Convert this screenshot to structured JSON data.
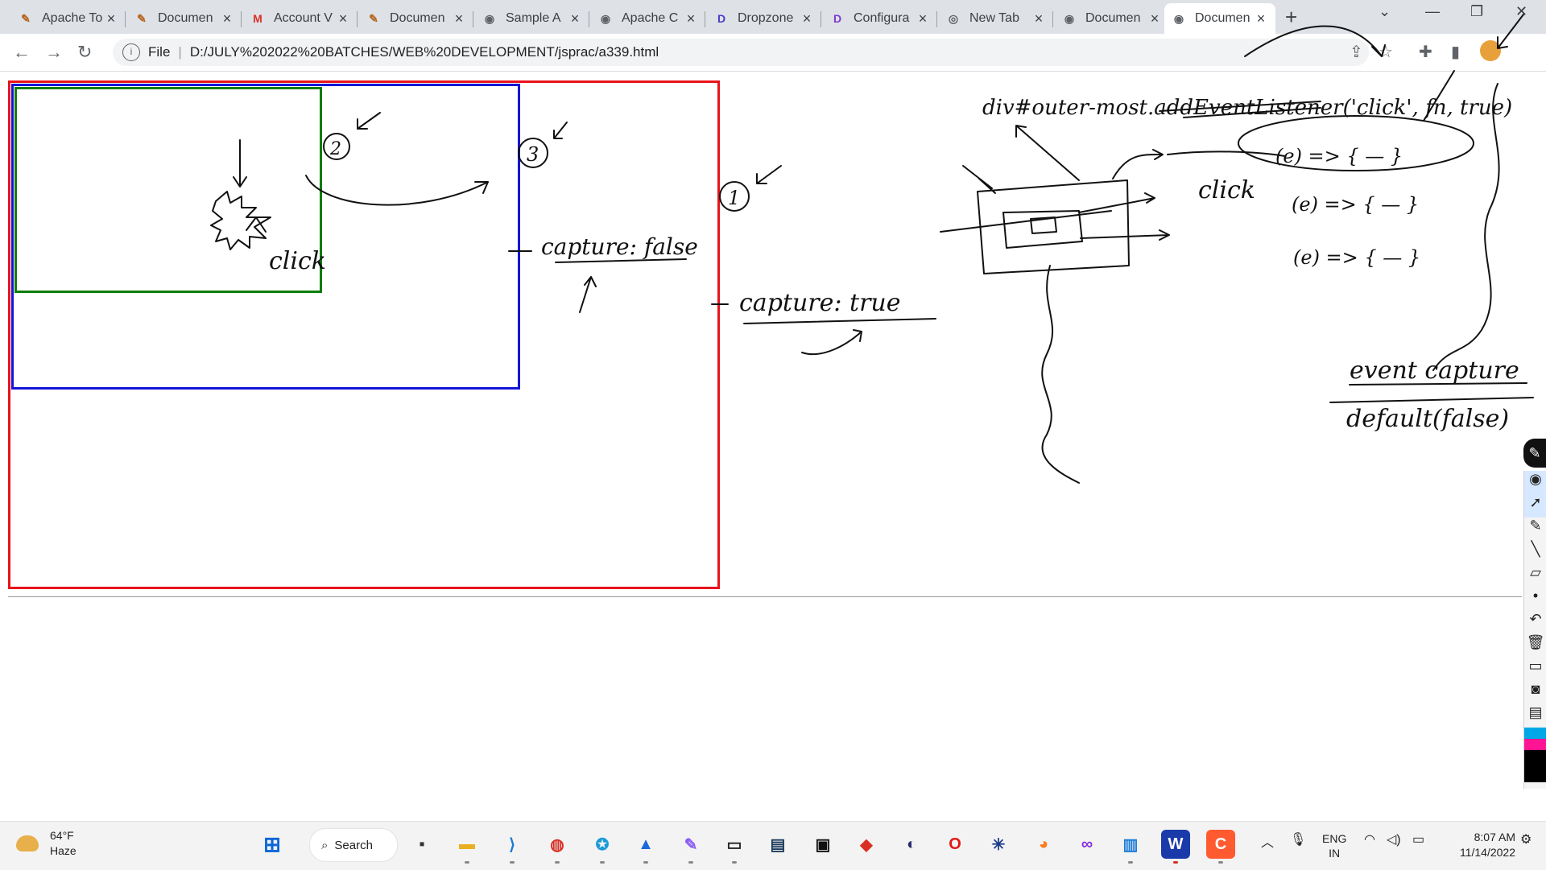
{
  "browser": {
    "tabs": [
      {
        "title": "Apache To",
        "favicon": "apache-icon"
      },
      {
        "title": "Documen",
        "favicon": "apache-icon"
      },
      {
        "title": "Account V",
        "favicon": "gmail-icon"
      },
      {
        "title": "Documen",
        "favicon": "apache-icon"
      },
      {
        "title": "Sample A",
        "favicon": "globe-icon"
      },
      {
        "title": "Apache C",
        "favicon": "globe-icon"
      },
      {
        "title": "Dropzone",
        "favicon": "dropzone-icon"
      },
      {
        "title": "Configura",
        "favicon": "dropzone-icon"
      },
      {
        "title": "New Tab",
        "favicon": "chrome-icon"
      },
      {
        "title": "Documen",
        "favicon": "globe-icon"
      },
      {
        "title": "Documen",
        "favicon": "globe-icon",
        "active": true
      }
    ],
    "address": {
      "scheme_label": "File",
      "separator": "|",
      "url": "D:/JULY%202022%20BATCHES/WEB%20DEVELOPMENT/jsprac/a339.html"
    }
  },
  "page": {
    "boxes": [
      {
        "name": "outer-most",
        "color": "#e8141c"
      },
      {
        "name": "outer",
        "color": "#1414d8"
      },
      {
        "name": "inner",
        "color": "#0a7d0a"
      }
    ]
  },
  "annotations": {
    "texts": [
      "click",
      "2",
      "3",
      "1",
      "capture: false",
      "capture: true",
      "div#outer-most.addEventListener('click', fn, true)",
      "click",
      "(e) => { — }",
      "(e) => { — }",
      "(e) => { — }",
      "event capture",
      "default(false)"
    ]
  },
  "taskbar": {
    "weather": {
      "temp": "64°F",
      "condition": "Haze"
    },
    "search_label": "Search",
    "lang_line1": "ENG",
    "lang_line2": "IN",
    "time": "8:07 AM",
    "date": "11/14/2022"
  }
}
